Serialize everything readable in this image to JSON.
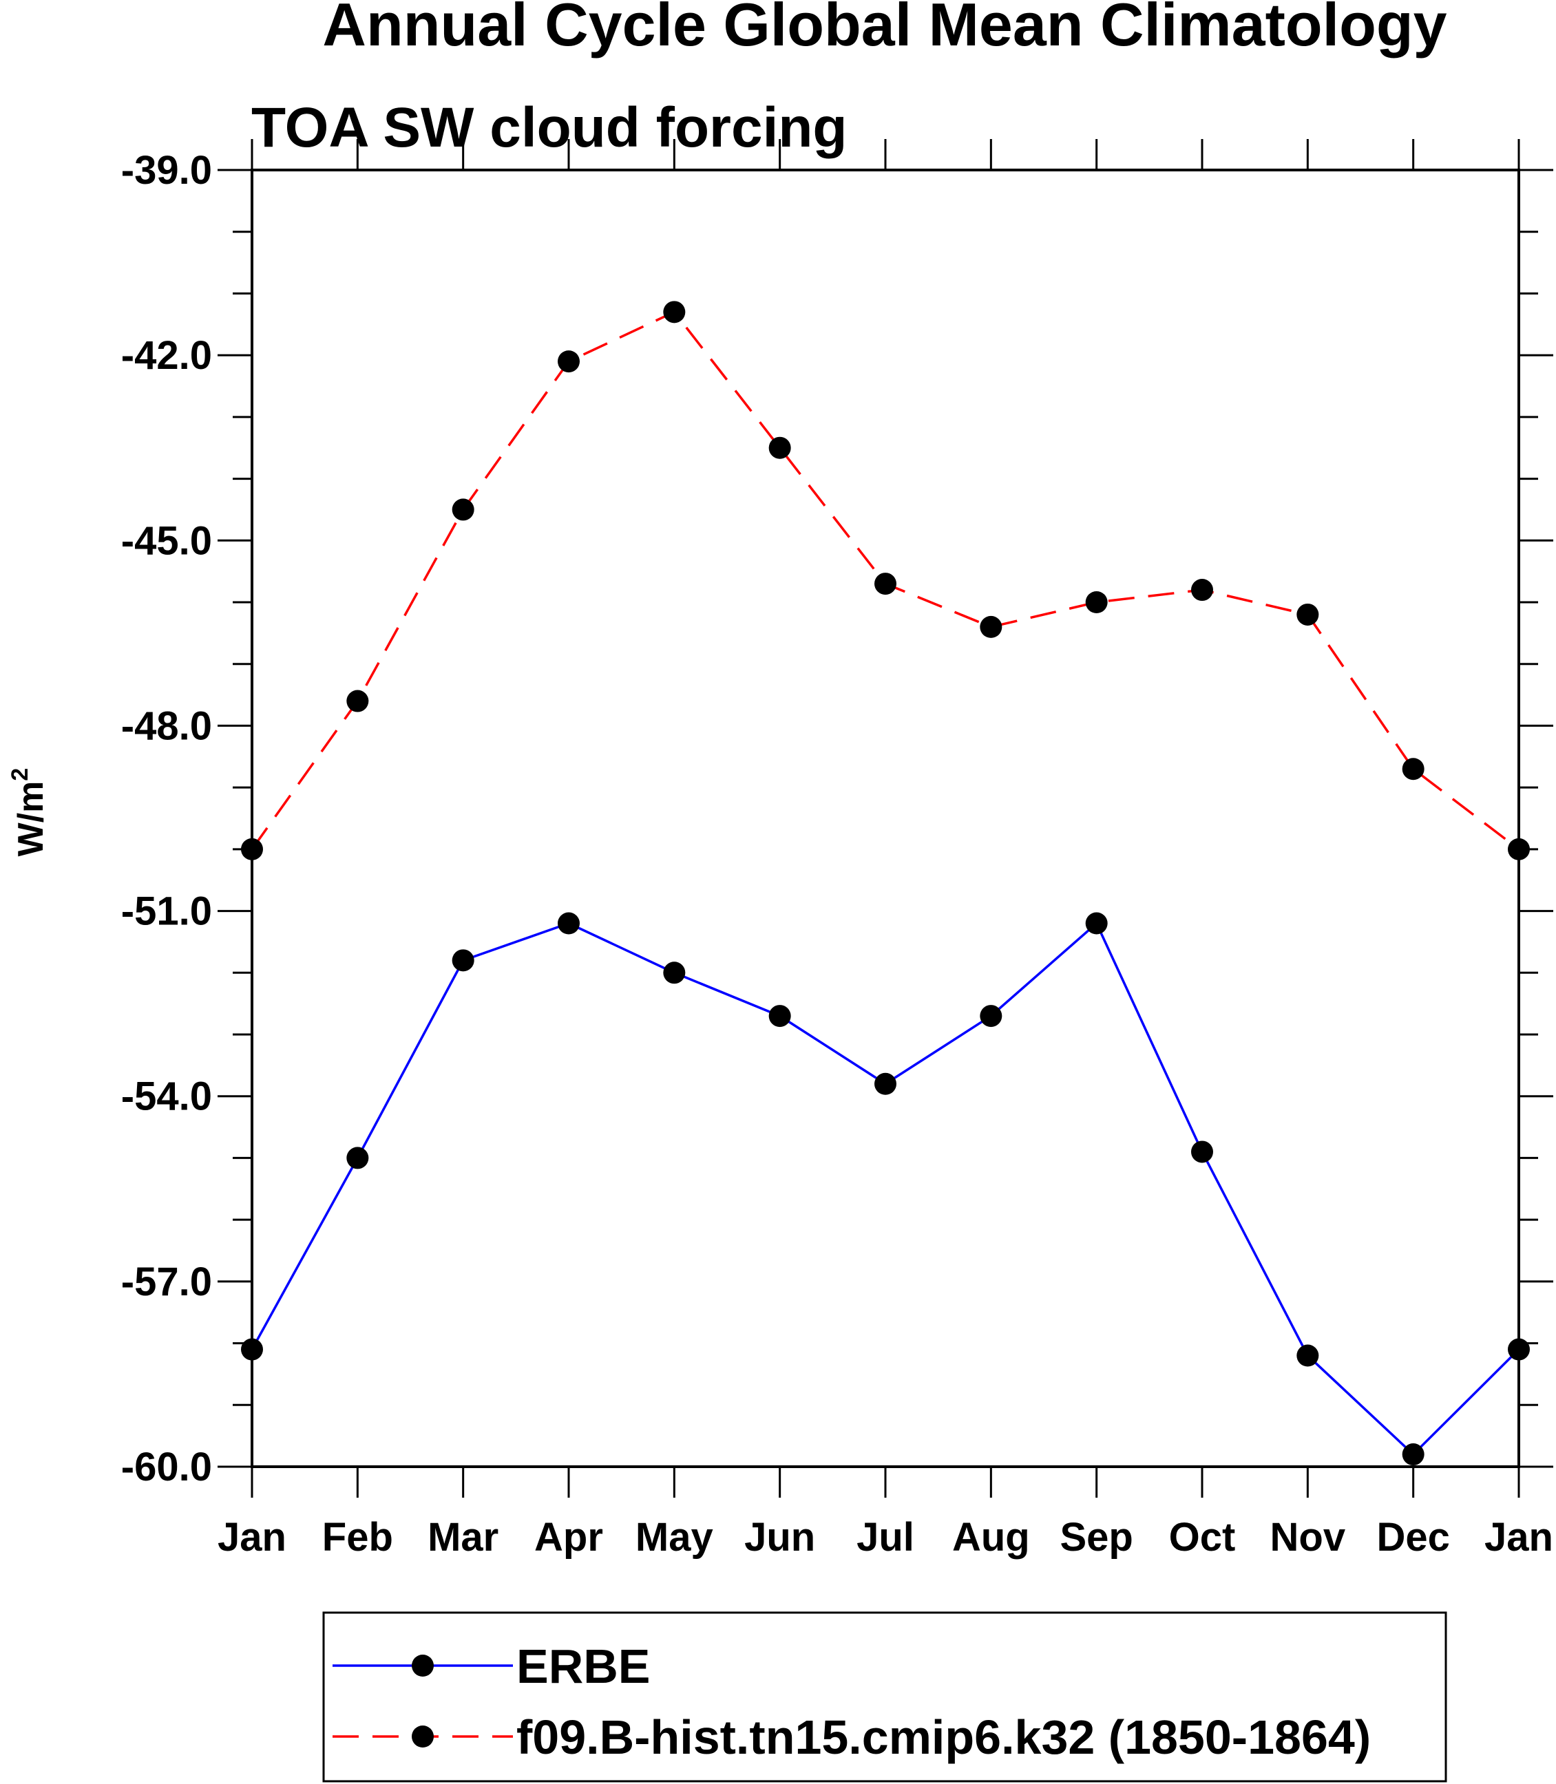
{
  "chart_data": {
    "type": "line",
    "title": "Annual Cycle Global Mean Climatology",
    "subtitle": "TOA SW cloud forcing",
    "xlabel": "",
    "ylabel": "W/m",
    "ylabel_superscript": "2",
    "categories": [
      "Jan",
      "Feb",
      "Mar",
      "Apr",
      "May",
      "Jun",
      "Jul",
      "Aug",
      "Sep",
      "Oct",
      "Nov",
      "Dec",
      "Jan"
    ],
    "ylim": [
      -60.0,
      -39.0
    ],
    "yticks": [
      "-39.0",
      "-42.0",
      "-45.0",
      "-48.0",
      "-51.0",
      "-54.0",
      "-57.0",
      "-60.0"
    ],
    "grid": false,
    "legend_position": "bottom",
    "series": [
      {
        "name": "ERBE",
        "color": "#0000ff",
        "line_style": "solid",
        "marker": "filled-circle",
        "values": [
          -58.1,
          -55.0,
          -51.8,
          -51.2,
          -52.0,
          -52.7,
          -53.8,
          -52.7,
          -51.2,
          -54.9,
          -58.2,
          -59.8,
          -58.1
        ]
      },
      {
        "name": "f09.B-hist.tn15.cmip6.k32 (1850-1864)",
        "color": "#ff0000",
        "line_style": "dashed",
        "marker": "filled-circle",
        "values": [
          -50.0,
          -47.6,
          -44.5,
          -42.1,
          -41.3,
          -43.5,
          -45.7,
          -46.4,
          -46.0,
          -45.8,
          -46.2,
          -48.7,
          -50.0
        ]
      }
    ]
  }
}
